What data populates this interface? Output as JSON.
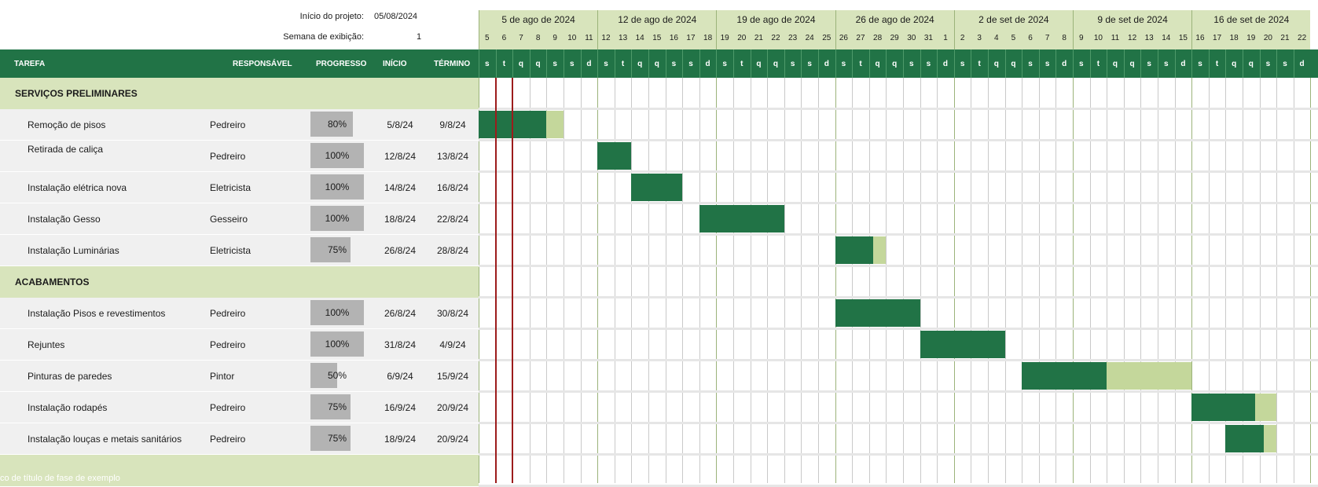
{
  "meta": {
    "start_label": "Início do projeto:",
    "start_value": "05/08/2024",
    "week_label": "Semana de exibição:",
    "week_value": "1"
  },
  "columns": {
    "task": "TAREFA",
    "owner": "RESPONSÁVEL",
    "progress": "PROGRESSO",
    "start": "INÍCIO",
    "end": "TÉRMINO"
  },
  "weeks": [
    "5 de ago de 2024",
    "12 de ago de 2024",
    "19 de ago de 2024",
    "26 de ago de 2024",
    "2 de set de 2024",
    "9 de set de 2024",
    "16 de set de 2024"
  ],
  "days": [
    "5",
    "6",
    "7",
    "8",
    "9",
    "10",
    "11",
    "12",
    "13",
    "14",
    "15",
    "16",
    "17",
    "18",
    "19",
    "20",
    "21",
    "22",
    "23",
    "24",
    "25",
    "26",
    "27",
    "28",
    "29",
    "30",
    "31",
    "1",
    "2",
    "3",
    "4",
    "5",
    "6",
    "7",
    "8",
    "9",
    "10",
    "11",
    "12",
    "13",
    "14",
    "15",
    "16",
    "17",
    "18",
    "19",
    "20",
    "21",
    "22"
  ],
  "dows": [
    "s",
    "t",
    "q",
    "q",
    "s",
    "s",
    "d",
    "s",
    "t",
    "q",
    "q",
    "s",
    "s",
    "d",
    "s",
    "t",
    "q",
    "q",
    "s",
    "s",
    "d",
    "s",
    "t",
    "q",
    "q",
    "s",
    "s",
    "d",
    "s",
    "t",
    "q",
    "q",
    "s",
    "s",
    "d",
    "s",
    "t",
    "q",
    "q",
    "s",
    "s",
    "d",
    "s",
    "t",
    "q",
    "q",
    "s",
    "s",
    "d"
  ],
  "rows": [
    {
      "type": "phase",
      "title": "SERVIÇOS PRELIMINARES"
    },
    {
      "type": "task",
      "name": "Remoção de pisos",
      "owner": "Pedreiro",
      "progress": "80%",
      "pct": 0.8,
      "start": "5/8/24",
      "end": "9/8/24",
      "d0": 0,
      "d1": 4
    },
    {
      "type": "task",
      "name": "Retirada de caliça",
      "owner": "Pedreiro",
      "progress": "100%",
      "pct": 1,
      "start": "12/8/24",
      "end": "13/8/24",
      "d0": 7,
      "d1": 8,
      "name_top": true
    },
    {
      "type": "task",
      "name": "Instalação elétrica nova",
      "owner": "Eletricista",
      "progress": "100%",
      "pct": 1,
      "start": "14/8/24",
      "end": "16/8/24",
      "d0": 9,
      "d1": 11
    },
    {
      "type": "task",
      "name": "Instalação Gesso",
      "owner": "Gesseiro",
      "progress": "100%",
      "pct": 1,
      "start": "18/8/24",
      "end": "22/8/24",
      "d0": 13,
      "d1": 17
    },
    {
      "type": "task",
      "name": "Instalação Luminárias",
      "owner": "Eletricista",
      "progress": "75%",
      "pct": 0.75,
      "start": "26/8/24",
      "end": "28/8/24",
      "d0": 21,
      "d1": 23
    },
    {
      "type": "phase",
      "title": "ACABAMENTOS"
    },
    {
      "type": "task",
      "name": "Instalação Pisos e revestimentos",
      "owner": "Pedreiro",
      "progress": "100%",
      "pct": 1,
      "start": "26/8/24",
      "end": "30/8/24",
      "d0": 21,
      "d1": 25
    },
    {
      "type": "task",
      "name": "Rejuntes",
      "owner": "Pedreiro",
      "progress": "100%",
      "pct": 1,
      "start": "31/8/24",
      "end": "4/9/24",
      "d0": 26,
      "d1": 30
    },
    {
      "type": "task",
      "name": "Pinturas de paredes",
      "owner": "Pintor",
      "progress": "50%",
      "pct": 0.5,
      "start": "6/9/24",
      "end": "15/9/24",
      "d0": 32,
      "d1": 41
    },
    {
      "type": "task",
      "name": "Instalação rodapés",
      "owner": "Pedreiro",
      "progress": "75%",
      "pct": 0.75,
      "start": "16/9/24",
      "end": "20/9/24",
      "d0": 42,
      "d1": 46
    },
    {
      "type": "task",
      "name": "Instalação louças e metais sanitários",
      "owner": "Pedreiro",
      "progress": "75%",
      "pct": 0.75,
      "start": "18/9/24",
      "end": "20/9/24",
      "d0": 44,
      "d1": 46
    },
    {
      "type": "phase",
      "title": "",
      "footer": "co de título de fase de exemplo"
    }
  ],
  "colors": {
    "header": "#217346",
    "phase": "#d8e4bc",
    "bar_done": "#217346",
    "bar_remaining": "#c4d79b",
    "today": "#9c1c1c"
  }
}
